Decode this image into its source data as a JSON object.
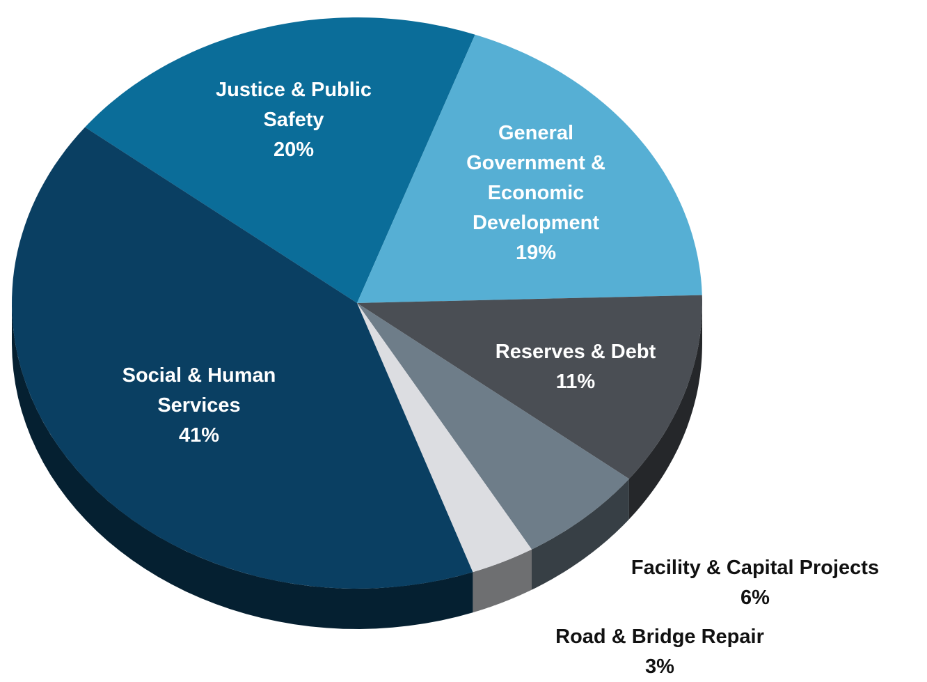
{
  "chart_data": {
    "type": "pie",
    "categories": [
      "Justice & Public Safety",
      "General Government & Economic Development",
      "Reserves & Debt",
      "Facility & Capital Projects",
      "Road & Bridge Repair",
      "Social & Human Services"
    ],
    "values": [
      20,
      19,
      11,
      6,
      3,
      41
    ],
    "value_labels": [
      "20%",
      "19%",
      "11%",
      "6%",
      "3%",
      "41%"
    ],
    "colors": [
      "#0b6d99",
      "#56afd4",
      "#4a4e54",
      "#6e7d89",
      "#dcdde1",
      "#0a3f62"
    ]
  }
}
